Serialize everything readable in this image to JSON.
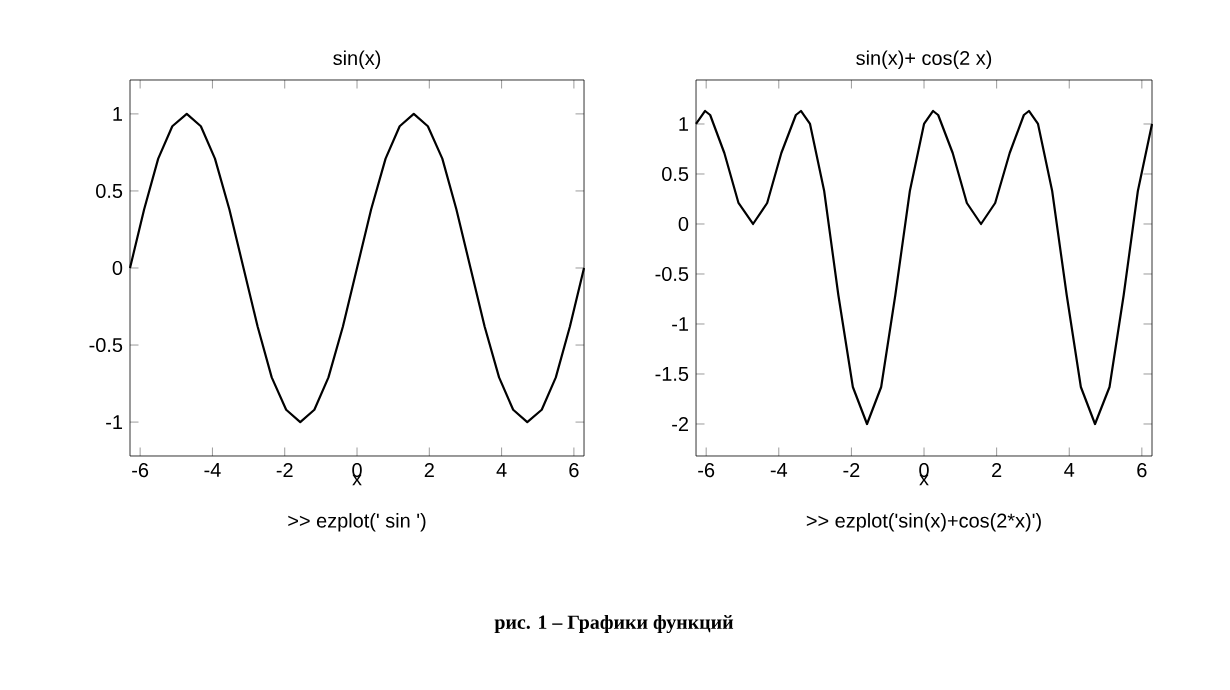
{
  "chart_data": [
    {
      "type": "line",
      "title": "sin(x)",
      "xlabel": "x",
      "annotations": [
        ">> ezplot(' sin ')",
        "рис. 1 – Графики функций"
      ],
      "color": "#000000",
      "x": [
        -6.28,
        -5.89,
        -5.5,
        -5.11,
        -4.71,
        -4.32,
        -3.93,
        -3.53,
        -3.14,
        -2.75,
        -2.36,
        -1.96,
        -1.57,
        -1.18,
        -0.79,
        -0.39,
        0,
        0.39,
        0.79,
        1.18,
        1.57,
        1.96,
        2.36,
        2.75,
        3.14,
        3.53,
        3.93,
        4.32,
        4.71,
        5.11,
        5.5,
        5.89,
        6.28
      ],
      "values": [
        0,
        0.38,
        0.71,
        0.92,
        1,
        0.92,
        0.71,
        0.38,
        0,
        -0.38,
        -0.71,
        -0.92,
        -1,
        -0.92,
        -0.71,
        -0.38,
        0,
        0.38,
        0.71,
        0.92,
        1,
        0.92,
        0.71,
        0.38,
        0,
        -0.38,
        -0.71,
        -0.92,
        -1,
        -0.92,
        -0.71,
        -0.38,
        0
      ],
      "xlim": [
        -6.28,
        6.28
      ],
      "ylim": [
        -1.22,
        1.22
      ],
      "xticks": [
        -6,
        -4,
        -2,
        0,
        2,
        4,
        6
      ],
      "yticks": [
        -1,
        -0.5,
        0,
        0.5,
        1
      ]
    },
    {
      "type": "line",
      "title": "sin(x)+ cos(2 x)",
      "xlabel": "x",
      "annotations": [
        ">> ezplot('sin(x)+cos(2*x)')"
      ],
      "color": "#000000",
      "x": [
        -6.28,
        -6.03,
        -5.89,
        -5.5,
        -5.11,
        -4.71,
        -4.32,
        -3.93,
        -3.53,
        -3.39,
        -3.14,
        -2.75,
        -2.36,
        -1.96,
        -1.57,
        -1.18,
        -0.79,
        -0.39,
        0,
        0.25,
        0.39,
        0.79,
        1.18,
        1.57,
        1.96,
        2.36,
        2.75,
        2.89,
        3.14,
        3.53,
        3.93,
        4.32,
        4.71,
        5.11,
        5.5,
        5.89,
        6.28
      ],
      "values": [
        1,
        1.13,
        1.09,
        0.71,
        0.21,
        0,
        0.21,
        0.71,
        1.09,
        1.13,
        1,
        0.33,
        -0.71,
        -1.63,
        -2,
        -1.63,
        -0.71,
        0.33,
        1,
        1.13,
        1.09,
        0.71,
        0.21,
        0,
        0.21,
        0.71,
        1.09,
        1.13,
        1,
        0.33,
        -0.71,
        -1.63,
        -2,
        -1.63,
        -0.71,
        0.33,
        1
      ],
      "xlim": [
        -6.28,
        6.28
      ],
      "ylim": [
        -2.32,
        1.44
      ],
      "xticks": [
        -6,
        -4,
        -2,
        0,
        2,
        4,
        6
      ],
      "yticks": [
        -2,
        -1.5,
        -1,
        -0.5,
        0,
        0.5,
        1
      ]
    }
  ]
}
